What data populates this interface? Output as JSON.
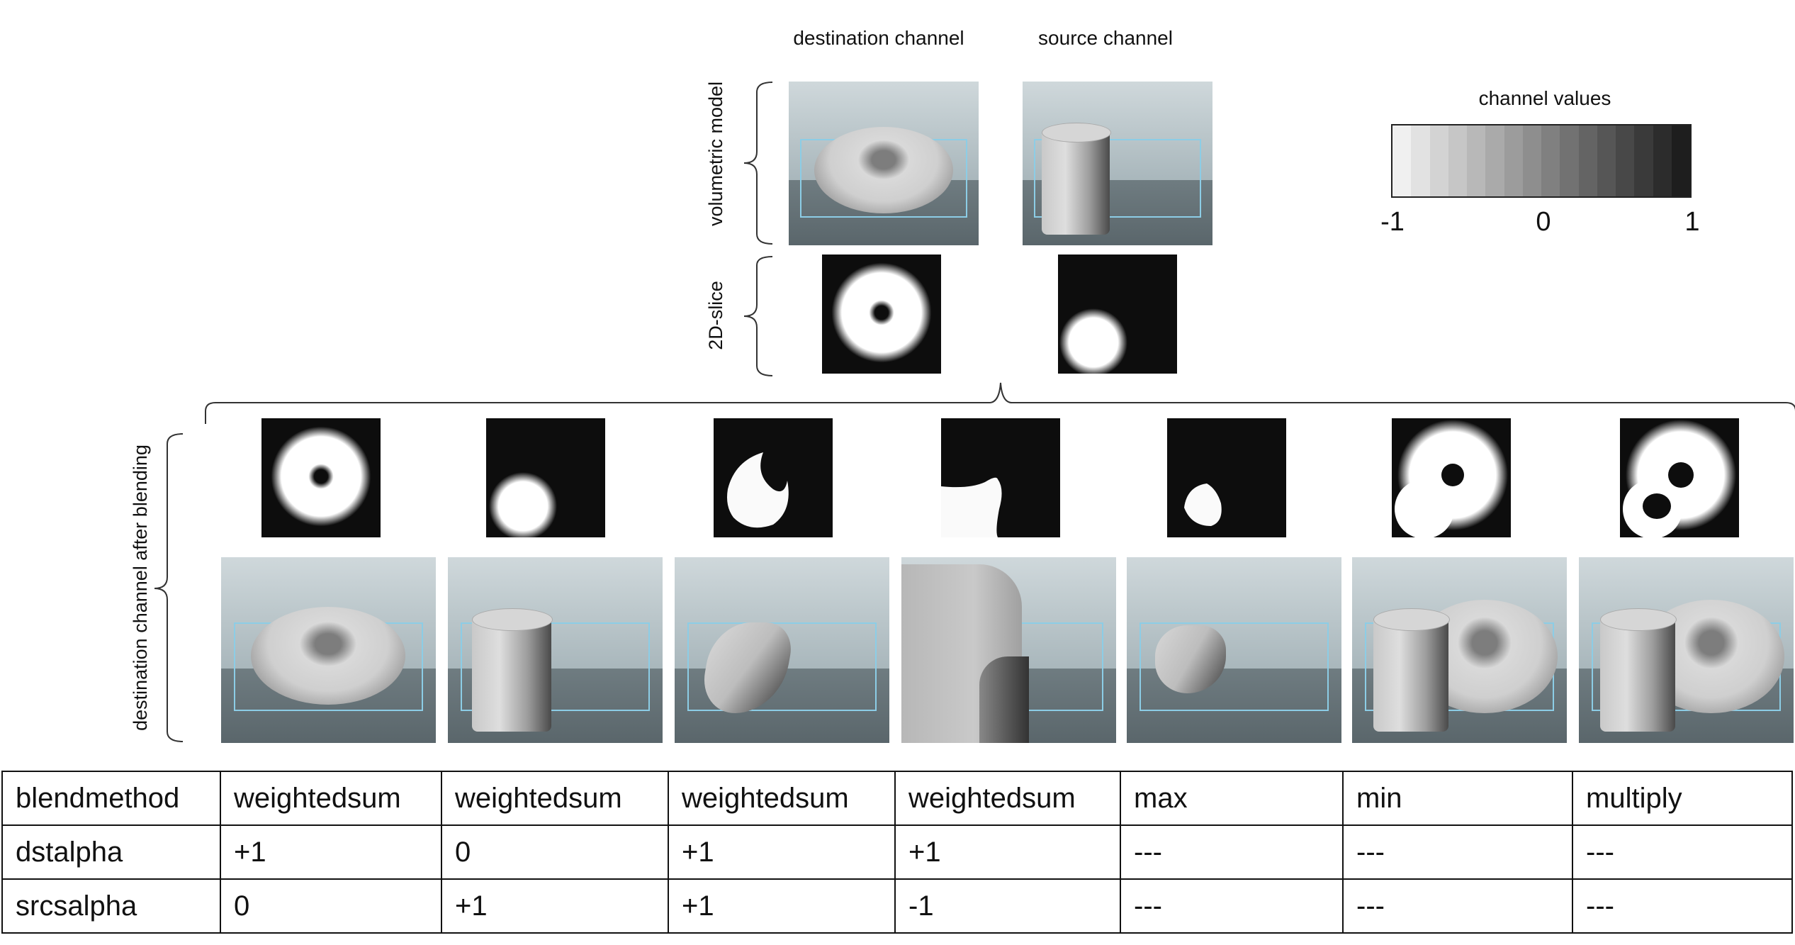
{
  "headers": {
    "destination": "destination channel",
    "source": "source channel",
    "colorbar_title": "channel values"
  },
  "row_labels": {
    "volumetric": "volumetric model",
    "slice": "2D-slice",
    "after_blending": "destination channel after blending"
  },
  "colorbar": {
    "ticks": [
      "-1",
      "0",
      "1"
    ],
    "colors": [
      "#f0f0f0",
      "#e2e2e2",
      "#d3d3d3",
      "#c6c6c6",
      "#b8b8b8",
      "#aaaaaa",
      "#9c9c9c",
      "#8e8e8e",
      "#808080",
      "#727272",
      "#646464",
      "#565656",
      "#484848",
      "#3a3a3a",
      "#2c2c2c",
      "#1e1e1e"
    ]
  },
  "table": {
    "rows": [
      [
        "blendmethod",
        "weightedsum",
        "weightedsum",
        "weightedsum",
        "weightedsum",
        "max",
        "min",
        "multiply"
      ],
      [
        "dstalpha",
        "+1",
        "0",
        "+1",
        "+1",
        "---",
        "---",
        "---"
      ],
      [
        "srcsalpha",
        "0",
        "+1",
        "+1",
        "-1",
        "---",
        "---",
        "---"
      ]
    ]
  }
}
